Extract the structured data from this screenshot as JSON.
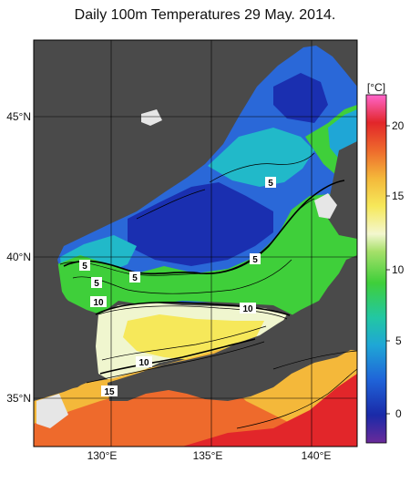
{
  "title": "Daily 100m Temperatures 29 May. 2014.",
  "map": {
    "lon_ticks": [
      "130°E",
      "135°E",
      "140°E"
    ],
    "lat_ticks": [
      "45°N",
      "40°N",
      "35°N"
    ],
    "land_color": "#4a4a4a",
    "background_color": "#ffffff"
  },
  "colorbar": {
    "unit": "[°C]",
    "ticks": [
      "20",
      "15",
      "10",
      "5",
      "0"
    ],
    "range": [
      -1,
      22
    ]
  },
  "contour_labels": [
    "5",
    "5",
    "5",
    "5",
    "5",
    "10",
    "10",
    "10",
    "15"
  ]
}
